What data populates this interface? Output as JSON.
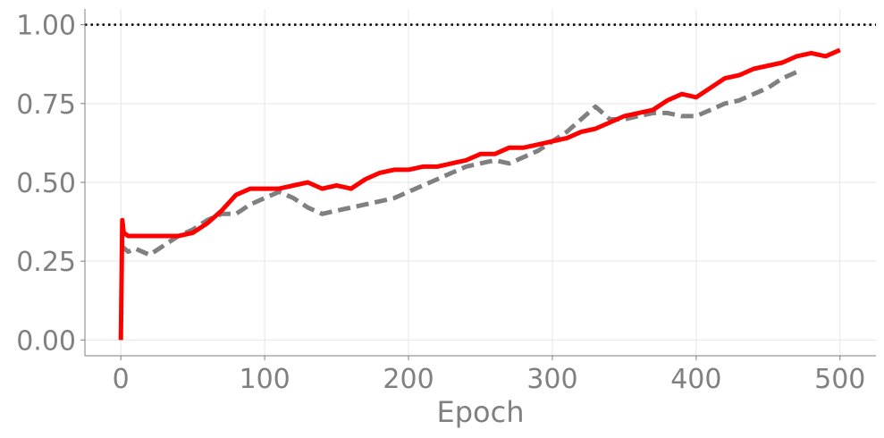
{
  "chart_data": {
    "type": "line",
    "title": "",
    "xlabel": "Epoch",
    "ylabel": "",
    "xlim": [
      -25,
      525
    ],
    "ylim": [
      -0.05,
      1.05
    ],
    "x_ticks": [
      0,
      100,
      200,
      300,
      400,
      500
    ],
    "y_ticks": [
      0.0,
      0.25,
      0.5,
      0.75,
      1.0
    ],
    "x_tick_labels": [
      "0",
      "100",
      "200",
      "300",
      "400",
      "500"
    ],
    "y_tick_labels": [
      "0.00",
      "0.25",
      "0.50",
      "0.75",
      "1.00"
    ],
    "grid": true,
    "reference_line": {
      "y": 1.0,
      "style": "dotted",
      "color": "#000000"
    },
    "series": [
      {
        "style": "solid",
        "color": "#ff0000",
        "x": [
          0,
          1,
          2,
          5,
          10,
          20,
          30,
          40,
          50,
          60,
          70,
          80,
          90,
          100,
          110,
          120,
          130,
          140,
          150,
          160,
          170,
          180,
          190,
          200,
          210,
          220,
          230,
          240,
          250,
          260,
          270,
          280,
          290,
          300,
          310,
          320,
          330,
          340,
          350,
          360,
          370,
          380,
          390,
          400,
          410,
          420,
          430,
          440,
          450,
          460,
          470,
          480,
          490,
          500
        ],
        "y": [
          0.0,
          0.38,
          0.34,
          0.33,
          0.33,
          0.33,
          0.33,
          0.33,
          0.34,
          0.37,
          0.41,
          0.46,
          0.48,
          0.48,
          0.48,
          0.49,
          0.5,
          0.48,
          0.49,
          0.48,
          0.51,
          0.53,
          0.54,
          0.54,
          0.55,
          0.55,
          0.56,
          0.57,
          0.59,
          0.59,
          0.61,
          0.61,
          0.62,
          0.63,
          0.64,
          0.66,
          0.67,
          0.69,
          0.71,
          0.72,
          0.73,
          0.76,
          0.78,
          0.77,
          0.8,
          0.83,
          0.84,
          0.86,
          0.87,
          0.88,
          0.9,
          0.91,
          0.9,
          0.92
        ]
      },
      {
        "style": "dashed",
        "color": "#808080",
        "x": [
          0,
          5,
          10,
          20,
          30,
          40,
          50,
          60,
          70,
          80,
          90,
          100,
          110,
          120,
          130,
          140,
          150,
          160,
          170,
          180,
          190,
          200,
          210,
          220,
          230,
          240,
          250,
          260,
          270,
          280,
          290,
          300,
          310,
          320,
          330,
          340,
          350,
          360,
          370,
          380,
          390,
          400,
          410,
          420,
          430,
          440,
          450,
          460,
          470
        ],
        "y": [
          0.3,
          0.28,
          0.29,
          0.27,
          0.3,
          0.33,
          0.35,
          0.38,
          0.4,
          0.4,
          0.43,
          0.45,
          0.47,
          0.45,
          0.42,
          0.4,
          0.41,
          0.42,
          0.43,
          0.44,
          0.45,
          0.47,
          0.49,
          0.51,
          0.53,
          0.55,
          0.56,
          0.57,
          0.56,
          0.58,
          0.6,
          0.63,
          0.66,
          0.7,
          0.74,
          0.7,
          0.7,
          0.71,
          0.72,
          0.72,
          0.71,
          0.71,
          0.73,
          0.75,
          0.76,
          0.78,
          0.8,
          0.83,
          0.85
        ]
      }
    ]
  }
}
